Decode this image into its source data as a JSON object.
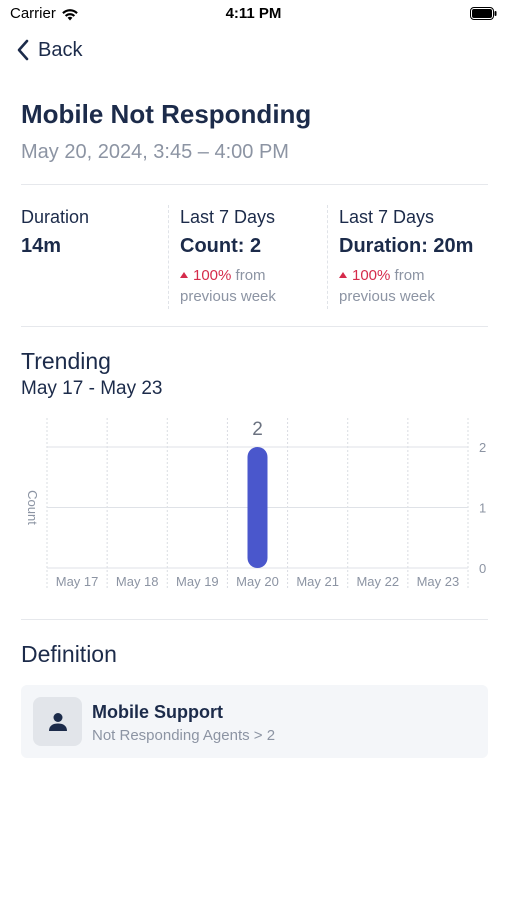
{
  "status_bar": {
    "carrier": "Carrier",
    "time": "4:11 PM"
  },
  "nav": {
    "back_label": "Back"
  },
  "header": {
    "title": "Mobile Not Responding",
    "subtitle": "May 20, 2024, 3:45 – 4:00 PM"
  },
  "stats": [
    {
      "label": "Duration",
      "value": "14m",
      "change_pct": "",
      "change_text": ""
    },
    {
      "label": "Last 7 Days",
      "value": "Count: 2",
      "change_pct": "100%",
      "change_text": " from previous week"
    },
    {
      "label": "Last 7 Days",
      "value": "Duration: 20m",
      "change_pct": "100%",
      "change_text": " from previous week"
    }
  ],
  "trending": {
    "title": "Trending",
    "range": "May 17 - May 23"
  },
  "chart_data": {
    "type": "bar",
    "categories": [
      "May 17",
      "May 18",
      "May 19",
      "May 20",
      "May 21",
      "May 22",
      "May 23"
    ],
    "values": [
      0,
      0,
      0,
      2,
      0,
      0,
      0
    ],
    "data_labels": [
      "",
      "",
      "",
      "2",
      "",
      "",
      ""
    ],
    "ylabel": "Count",
    "yticks": [
      0,
      1,
      2
    ],
    "ylim": [
      0,
      2
    ],
    "y_axis_side": "right",
    "grid": true,
    "bar_color": "#4a57cc"
  },
  "definition": {
    "title": "Definition",
    "name": "Mobile Support",
    "rule": "Not Responding Agents > 2",
    "icon": "person-icon"
  },
  "colors": {
    "text_primary": "#1c2b4a",
    "text_secondary": "#8c94a3",
    "increase": "#d52b4b",
    "bar": "#4a57cc"
  }
}
